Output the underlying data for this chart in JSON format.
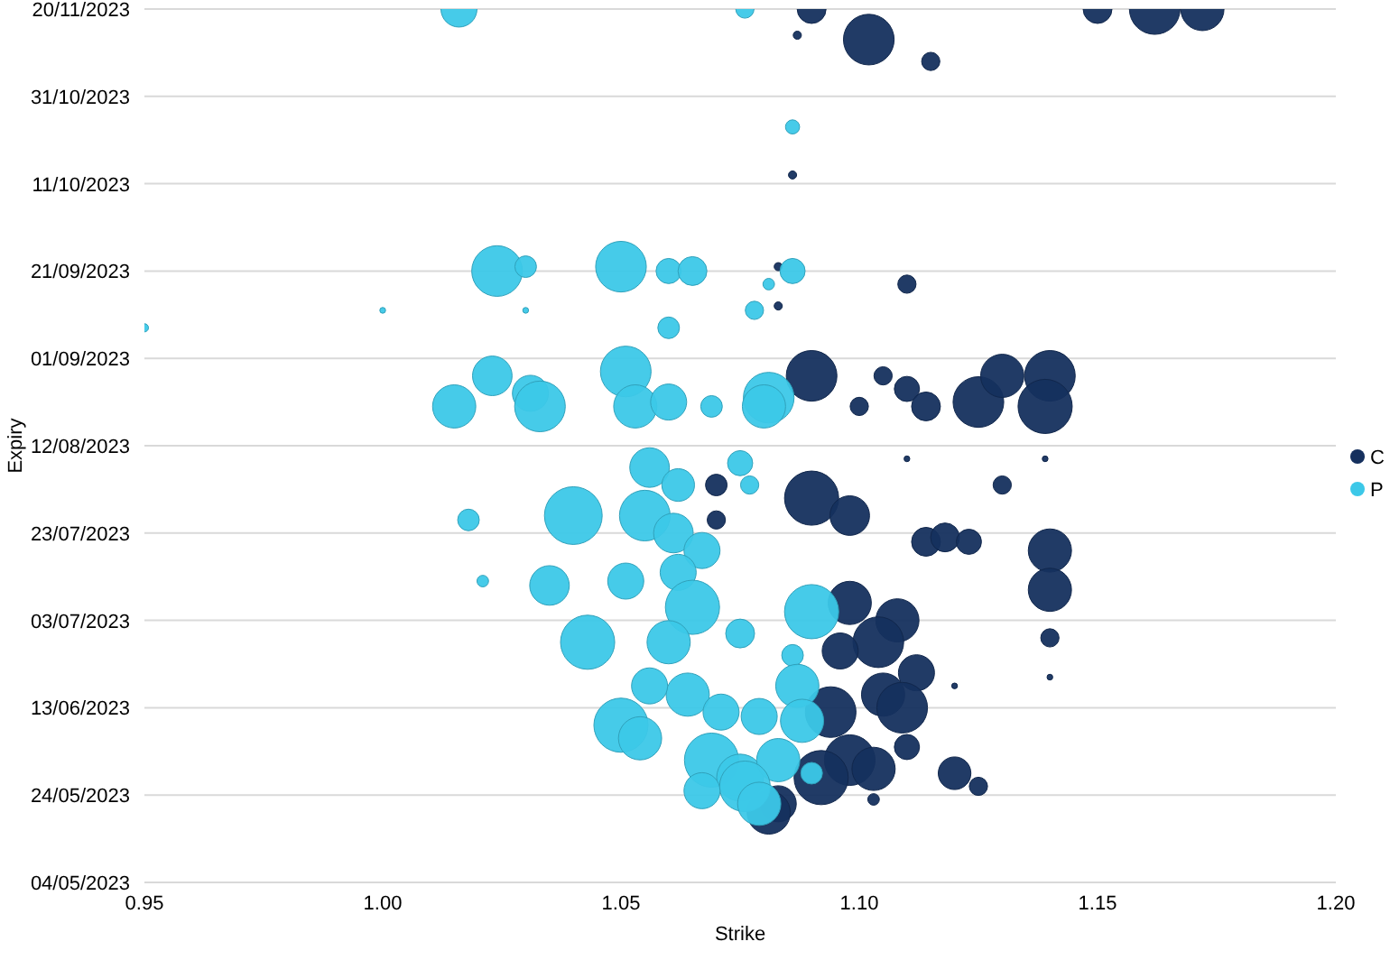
{
  "chart_data": {
    "type": "bubble",
    "orientation": "horizontal",
    "xlabel": "Strike",
    "ylabel": "Expiry",
    "xlim": [
      0.95,
      1.2
    ],
    "xticks": [
      {
        "value": 0.95,
        "label": "0.95"
      },
      {
        "value": 1.0,
        "label": "1.00"
      },
      {
        "value": 1.05,
        "label": "1.05"
      },
      {
        "value": 1.1,
        "label": "1.10"
      },
      {
        "value": 1.15,
        "label": "1.15"
      },
      {
        "value": 1.2,
        "label": "1.20"
      }
    ],
    "ylim": [
      "2023-05-04",
      "2023-11-20"
    ],
    "yticks": [
      {
        "value": "2023-05-04",
        "label": "04/05/2023"
      },
      {
        "value": "2023-05-24",
        "label": "24/05/2023"
      },
      {
        "value": "2023-06-13",
        "label": "13/06/2023"
      },
      {
        "value": "2023-07-03",
        "label": "03/07/2023"
      },
      {
        "value": "2023-07-23",
        "label": "23/07/2023"
      },
      {
        "value": "2023-08-12",
        "label": "12/08/2023"
      },
      {
        "value": "2023-09-01",
        "label": "01/09/2023"
      },
      {
        "value": "2023-09-21",
        "label": "21/09/2023"
      },
      {
        "value": "2023-10-11",
        "label": "11/10/2023"
      },
      {
        "value": "2023-10-31",
        "label": "31/10/2023"
      },
      {
        "value": "2023-11-20",
        "label": "20/11/2023"
      }
    ],
    "grid": "y",
    "legend": "right",
    "series": [
      {
        "name": "C",
        "color": "#15305e",
        "values": [
          1.102,
          1.115,
          1.087,
          1.086,
          1.09,
          1.15,
          1.162,
          1.172,
          1.11,
          1.083,
          1.083,
          1.09,
          1.105,
          1.1,
          1.11,
          1.114,
          1.125,
          1.13,
          1.14,
          1.139,
          1.139,
          1.11,
          1.07,
          1.07,
          1.09,
          1.098,
          1.13,
          1.114,
          1.118,
          1.123,
          1.14,
          1.14,
          1.14,
          1.14,
          1.12,
          1.12,
          1.125,
          1.103,
          1.098,
          1.108,
          1.104,
          1.112,
          1.105,
          1.109,
          1.094,
          1.098,
          1.11,
          1.103,
          1.092,
          1.083,
          1.081,
          1.096
        ],
        "x": [
          "2023-11-13",
          "2023-11-08",
          "2023-11-14",
          "2023-10-13",
          "2023-11-20",
          "2023-11-20",
          "2023-11-20",
          "2023-11-20",
          "2023-09-18",
          "2023-09-22",
          "2023-09-13",
          "2023-08-28",
          "2023-08-28",
          "2023-08-21",
          "2023-08-25",
          "2023-08-21",
          "2023-08-22",
          "2023-08-28",
          "2023-08-28",
          "2023-08-21",
          "2023-08-09",
          "2023-08-09",
          "2023-08-03",
          "2023-07-26",
          "2023-07-31",
          "2023-07-27",
          "2023-08-03",
          "2023-07-21",
          "2023-07-22",
          "2023-07-21",
          "2023-07-19",
          "2023-07-10",
          "2023-06-29",
          "2023-06-20",
          "2023-06-18",
          "2023-05-29",
          "2023-05-26",
          "2023-05-23",
          "2023-07-07",
          "2023-07-03",
          "2023-06-28",
          "2023-06-21",
          "2023-06-16",
          "2023-06-13",
          "2023-06-12",
          "2023-06-01",
          "2023-06-04",
          "2023-05-30",
          "2023-05-28",
          "2023-05-22",
          "2023-05-20",
          "2023-06-26"
        ],
        "sizes": [
          0.77,
          0.1,
          0.02,
          0.02,
          0.25,
          0.25,
          0.77,
          0.56,
          0.1,
          0.02,
          0.02,
          0.77,
          0.1,
          0.1,
          0.19,
          0.25,
          0.77,
          0.56,
          0.77,
          0.88,
          0.01,
          0.01,
          0.14,
          0.1,
          0.88,
          0.47,
          0.1,
          0.25,
          0.25,
          0.19,
          0.56,
          0.56,
          0.1,
          0.01,
          0.01,
          0.32,
          0.1,
          0.04,
          0.56,
          0.56,
          0.77,
          0.39,
          0.56,
          0.77,
          0.77,
          0.77,
          0.19,
          0.56,
          0.88,
          0.39,
          0.56,
          0.39
        ]
      },
      {
        "name": "P",
        "color": "#3cc8e8",
        "values": [
          1.016,
          1.076,
          1.086,
          1.024,
          1.03,
          1.05,
          1.06,
          1.065,
          1.086,
          1.081,
          1.078,
          1.06,
          0.95,
          1.0,
          1.03,
          1.023,
          1.015,
          1.031,
          1.033,
          1.051,
          1.053,
          1.06,
          1.069,
          1.081,
          1.08,
          1.075,
          1.056,
          1.062,
          1.077,
          1.018,
          1.04,
          1.055,
          1.061,
          1.067,
          1.021,
          1.035,
          1.051,
          1.062,
          1.065,
          1.043,
          1.09,
          1.06,
          1.075,
          1.086,
          1.05,
          1.064,
          1.071,
          1.079,
          1.087,
          1.069,
          1.075,
          1.083,
          1.088,
          1.076,
          1.067,
          1.079,
          1.09,
          1.056,
          1.054
        ],
        "x": [
          "2023-11-20",
          "2023-11-20",
          "2023-10-24",
          "2023-09-21",
          "2023-09-22",
          "2023-09-22",
          "2023-09-21",
          "2023-09-21",
          "2023-09-21",
          "2023-09-18",
          "2023-09-12",
          "2023-09-08",
          "2023-09-08",
          "2023-09-12",
          "2023-09-12",
          "2023-08-28",
          "2023-08-21",
          "2023-08-24",
          "2023-08-21",
          "2023-08-29",
          "2023-08-21",
          "2023-08-22",
          "2023-08-21",
          "2023-08-23",
          "2023-08-21",
          "2023-08-08",
          "2023-08-07",
          "2023-08-03",
          "2023-08-03",
          "2023-07-26",
          "2023-07-27",
          "2023-07-27",
          "2023-07-23",
          "2023-07-19",
          "2023-07-12",
          "2023-07-11",
          "2023-07-12",
          "2023-07-14",
          "2023-07-06",
          "2023-06-28",
          "2023-07-05",
          "2023-06-28",
          "2023-06-30",
          "2023-06-25",
          "2023-06-09",
          "2023-06-16",
          "2023-06-12",
          "2023-06-11",
          "2023-06-18",
          "2023-06-01",
          "2023-05-28",
          "2023-06-01",
          "2023-06-10",
          "2023-05-26",
          "2023-05-25",
          "2023-05-22",
          "2023-05-29",
          "2023-06-18",
          "2023-06-06"
        ],
        "sizes": [
          0.39,
          0.1,
          0.06,
          0.77,
          0.14,
          0.77,
          0.19,
          0.25,
          0.19,
          0.04,
          0.1,
          0.14,
          0.02,
          0.01,
          0.01,
          0.47,
          0.56,
          0.39,
          0.77,
          0.77,
          0.56,
          0.39,
          0.14,
          0.77,
          0.56,
          0.19,
          0.47,
          0.32,
          0.1,
          0.14,
          1,
          0.77,
          0.47,
          0.39,
          0.04,
          0.47,
          0.39,
          0.39,
          0.88,
          0.88,
          0.88,
          0.56,
          0.25,
          0.14,
          0.88,
          0.56,
          0.39,
          0.39,
          0.56,
          0.88,
          0.66,
          0.56,
          0.56,
          0.77,
          0.39,
          0.56,
          0.14,
          0.39,
          0.56
        ]
      }
    ]
  }
}
